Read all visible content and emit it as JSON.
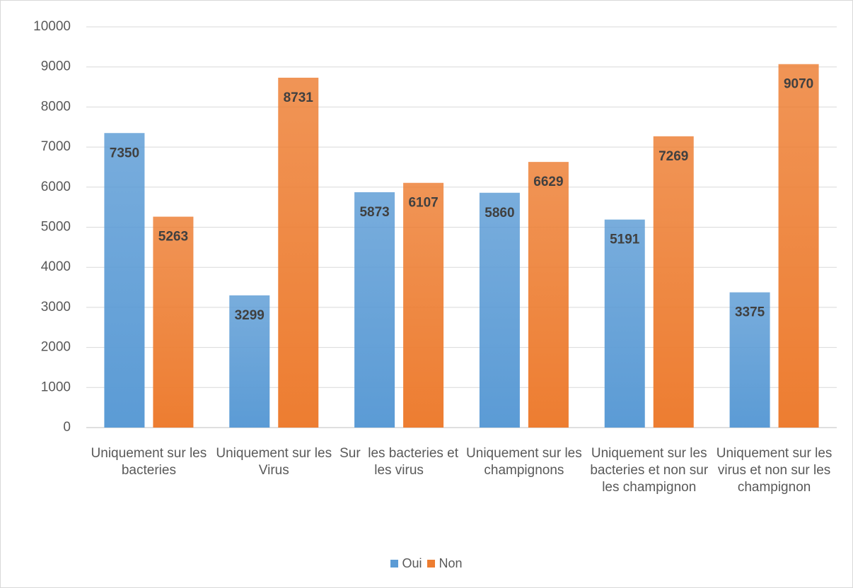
{
  "chart_data": {
    "type": "bar",
    "categories": [
      "Uniquement sur les bacteries",
      "Uniquement sur les Virus",
      "Sur  les bacteries et les virus",
      "Uniquement sur les champignons",
      "Uniquement sur les bacteries et non sur les champignon",
      "Uniquement sur les virus et non sur les champignon"
    ],
    "series": [
      {
        "name": "Oui",
        "color": "#5b9bd5",
        "values": [
          7350,
          3299,
          5873,
          5860,
          5191,
          3375
        ]
      },
      {
        "name": "Non",
        "color": "#ed7d31",
        "values": [
          5263,
          8731,
          6107,
          6629,
          7269,
          9070
        ]
      }
    ],
    "ylim": [
      0,
      10000
    ],
    "yticks": [
      0,
      1000,
      2000,
      3000,
      4000,
      5000,
      6000,
      7000,
      8000,
      9000,
      10000
    ],
    "grid": true,
    "legend": "bottom"
  }
}
